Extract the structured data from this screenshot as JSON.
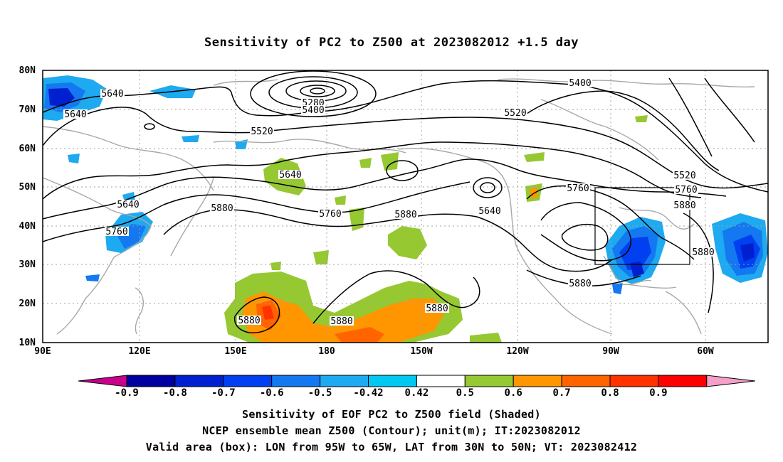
{
  "title": "Sensitivity of PC2 to Z500 at 2023082012 +1.5 day",
  "map": {
    "lon_labels": [
      "90E",
      "120E",
      "150E",
      "180",
      "150W",
      "120W",
      "90W",
      "60W"
    ],
    "lat_labels": [
      "80N",
      "70N",
      "60N",
      "50N",
      "40N",
      "30N",
      "20N",
      "10N"
    ],
    "box": {
      "lon_from": "95W",
      "lon_to": "65W",
      "lat_from": "30N",
      "lat_to": "50N"
    },
    "contour_labels": [
      "5640",
      "5640",
      "5280",
      "5400",
      "5400",
      "5520",
      "5520",
      "5640",
      "5520",
      "5640",
      "5640",
      "5760",
      "5880",
      "5760",
      "5880",
      "5760",
      "5880",
      "5640",
      "5760",
      "5880",
      "5880",
      "5880",
      "5880",
      "5880"
    ]
  },
  "colorbar": {
    "ticks": [
      "-0.9",
      "-0.8",
      "-0.7",
      "-0.6",
      "-0.5",
      "-0.42",
      "0.42",
      "0.5",
      "0.6",
      "0.7",
      "0.8",
      "0.9"
    ],
    "colors": [
      "#c8008c",
      "#0000a0",
      "#0020d0",
      "#0040f0",
      "#1478f0",
      "#1eaaf0",
      "#00c8f0",
      "#ffffff",
      "#96c832",
      "#ff9600",
      "#ff6400",
      "#ff3200",
      "#ff0000",
      "#f5a0c8"
    ]
  },
  "captions": {
    "line1": "Sensitivity of EOF PC2 to Z500 field (Shaded)",
    "line2": "NCEP ensemble mean Z500 (Contour); unit(m); IT:2023082012",
    "line3": "Valid area (box): LON from 95W to 65W, LAT from 30N to 50N; VT: 2023082412"
  }
}
